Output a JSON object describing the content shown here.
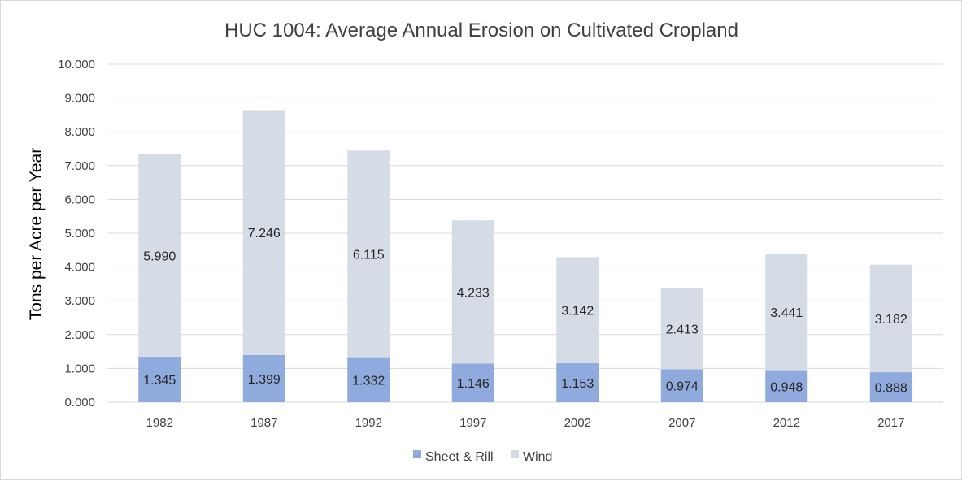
{
  "chart_data": {
    "type": "bar",
    "stacked": true,
    "title": "HUC 1004: Average Annual Erosion on Cultivated Cropland",
    "xlabel": "",
    "ylabel": "Tons per Acre per Year",
    "ylim": [
      0,
      10
    ],
    "yticks": [
      "0.000",
      "1.000",
      "2.000",
      "3.000",
      "4.000",
      "5.000",
      "6.000",
      "7.000",
      "8.000",
      "9.000",
      "10.000"
    ],
    "grid": true,
    "legend_position": "bottom",
    "categories": [
      "1982",
      "1987",
      "1992",
      "1997",
      "2002",
      "2007",
      "2012",
      "2017"
    ],
    "series": [
      {
        "name": "Sheet & Rill",
        "color": "#8faadc",
        "values": [
          1.345,
          1.399,
          1.332,
          1.146,
          1.153,
          0.974,
          0.948,
          0.888
        ],
        "labels": [
          "1.345",
          "1.399",
          "1.332",
          "1.146",
          "1.153",
          "0.974",
          "0.948",
          "0.888"
        ]
      },
      {
        "name": "Wind",
        "color": "#d6dce5",
        "values": [
          5.99,
          7.246,
          6.115,
          4.233,
          3.142,
          2.413,
          3.441,
          3.182
        ],
        "labels": [
          "5.990",
          "7.246",
          "6.115",
          "4.233",
          "3.142",
          "2.413",
          "3.441",
          "3.182"
        ]
      }
    ]
  }
}
